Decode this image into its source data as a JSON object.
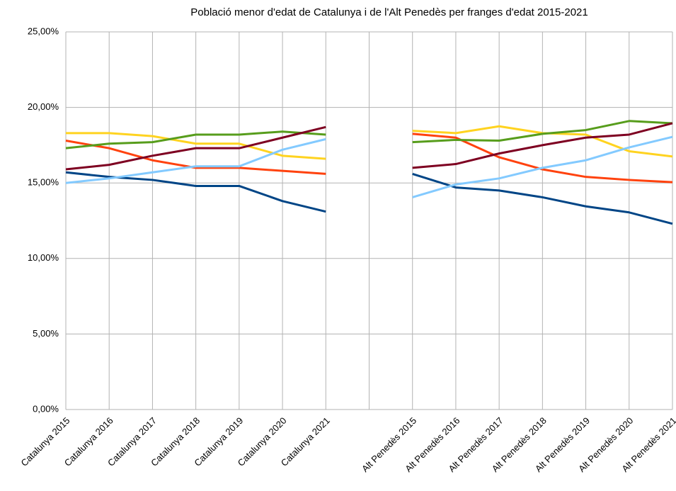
{
  "chart_data": {
    "type": "line",
    "title": "Població menor d'edat de Catalunya i de l'Alt Penedès per franges d'edat 2015-2021",
    "categories": [
      "Catalunya 2015",
      "Catalunya 2016",
      "Catalunya 2017",
      "Catalunya 2018",
      "Catalunya 2019",
      "Catalunya 2020",
      "Catalunya 2021",
      null,
      "Alt Penedès 2015",
      "Alt Penedès 2016",
      "Alt Penedès 2017",
      "Alt Penedès 2018",
      "Alt Penedès 2019",
      "Alt Penedès 2020",
      "Alt Penedès 2021"
    ],
    "series": [
      {
        "color": "#004586",
        "values": [
          15.7,
          15.4,
          15.2,
          14.8,
          14.8,
          13.8,
          13.1,
          null,
          15.6,
          14.7,
          14.5,
          14.05,
          13.45,
          13.05,
          12.3
        ]
      },
      {
        "color": "#ff420e",
        "values": [
          17.8,
          17.3,
          16.5,
          16.0,
          16.0,
          15.8,
          15.6,
          null,
          18.25,
          18.0,
          16.7,
          15.9,
          15.4,
          15.2,
          15.05
        ]
      },
      {
        "color": "#ffd320",
        "values": [
          18.3,
          18.3,
          18.1,
          17.6,
          17.6,
          16.8,
          16.6,
          null,
          18.45,
          18.3,
          18.75,
          18.3,
          18.2,
          17.1,
          16.75
        ]
      },
      {
        "color": "#579d1c",
        "values": [
          17.3,
          17.6,
          17.7,
          18.2,
          18.2,
          18.4,
          18.2,
          null,
          17.7,
          17.85,
          17.8,
          18.25,
          18.5,
          19.1,
          18.95
        ]
      },
      {
        "color": "#7e0021",
        "values": [
          15.9,
          16.2,
          16.8,
          17.3,
          17.3,
          18.0,
          18.7,
          null,
          16.0,
          16.25,
          16.95,
          17.5,
          18.0,
          18.2,
          18.95
        ]
      },
      {
        "color": "#83caff",
        "values": [
          15.0,
          15.3,
          15.7,
          16.1,
          16.1,
          17.2,
          17.9,
          null,
          14.05,
          14.9,
          15.3,
          16.0,
          16.5,
          17.35,
          18.05
        ]
      }
    ],
    "ylim": [
      0,
      25
    ],
    "yticks": [
      {
        "value": 0,
        "label": "0,00%"
      },
      {
        "value": 5,
        "label": "5,00%"
      },
      {
        "value": 10,
        "label": "10,00%"
      },
      {
        "value": 15,
        "label": "15,00%"
      },
      {
        "value": 20,
        "label": "20,00%"
      },
      {
        "value": 25,
        "label": "25,00%"
      }
    ],
    "grid": true
  }
}
